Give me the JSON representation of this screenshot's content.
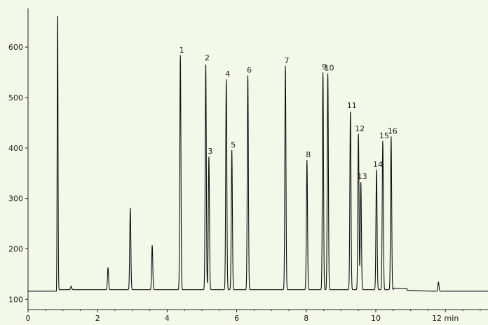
{
  "chart_data": {
    "type": "line",
    "title": "",
    "xlabel": "",
    "ylabel": "",
    "x_unit_label": "min",
    "xlim": [
      0,
      13.3
    ],
    "ylim": [
      88,
      665
    ],
    "x_ticks": [
      0,
      2,
      4,
      6,
      8,
      10,
      12
    ],
    "x_tick_labels": [
      "0",
      "2",
      "4",
      "6",
      "8",
      "10",
      "12 min"
    ],
    "y_ticks": [
      100,
      200,
      300,
      400,
      500,
      600
    ],
    "grid": false,
    "baseline": 116,
    "colors": {
      "background": "#f4f8e8",
      "trace": "#111111"
    },
    "series": [
      {
        "peaks": [
          {
            "x": 0.85,
            "y": 668,
            "label": ""
          },
          {
            "x": 1.24,
            "y": 123,
            "label": ""
          },
          {
            "x": 2.3,
            "y": 160,
            "label": ""
          },
          {
            "x": 2.94,
            "y": 278,
            "label": ""
          },
          {
            "x": 3.57,
            "y": 204,
            "label": ""
          },
          {
            "x": 4.38,
            "y": 581,
            "label": "1"
          },
          {
            "x": 5.11,
            "y": 565,
            "label": "2"
          },
          {
            "x": 5.2,
            "y": 380,
            "label": "3"
          },
          {
            "x": 5.7,
            "y": 533,
            "label": "4"
          },
          {
            "x": 5.86,
            "y": 393,
            "label": "5"
          },
          {
            "x": 6.32,
            "y": 541,
            "label": "6"
          },
          {
            "x": 7.4,
            "y": 560,
            "label": "7"
          },
          {
            "x": 8.02,
            "y": 373,
            "label": "8"
          },
          {
            "x": 8.48,
            "y": 547,
            "label": "9"
          },
          {
            "x": 8.62,
            "y": 545,
            "label": "10"
          },
          {
            "x": 9.27,
            "y": 471,
            "label": "11"
          },
          {
            "x": 9.5,
            "y": 425,
            "label": "12"
          },
          {
            "x": 9.57,
            "y": 330,
            "label": "13"
          },
          {
            "x": 10.02,
            "y": 354,
            "label": "14"
          },
          {
            "x": 10.2,
            "y": 411,
            "label": "15"
          },
          {
            "x": 10.44,
            "y": 420,
            "label": "16"
          },
          {
            "x": 11.8,
            "y": 134,
            "label": ""
          }
        ]
      }
    ]
  }
}
